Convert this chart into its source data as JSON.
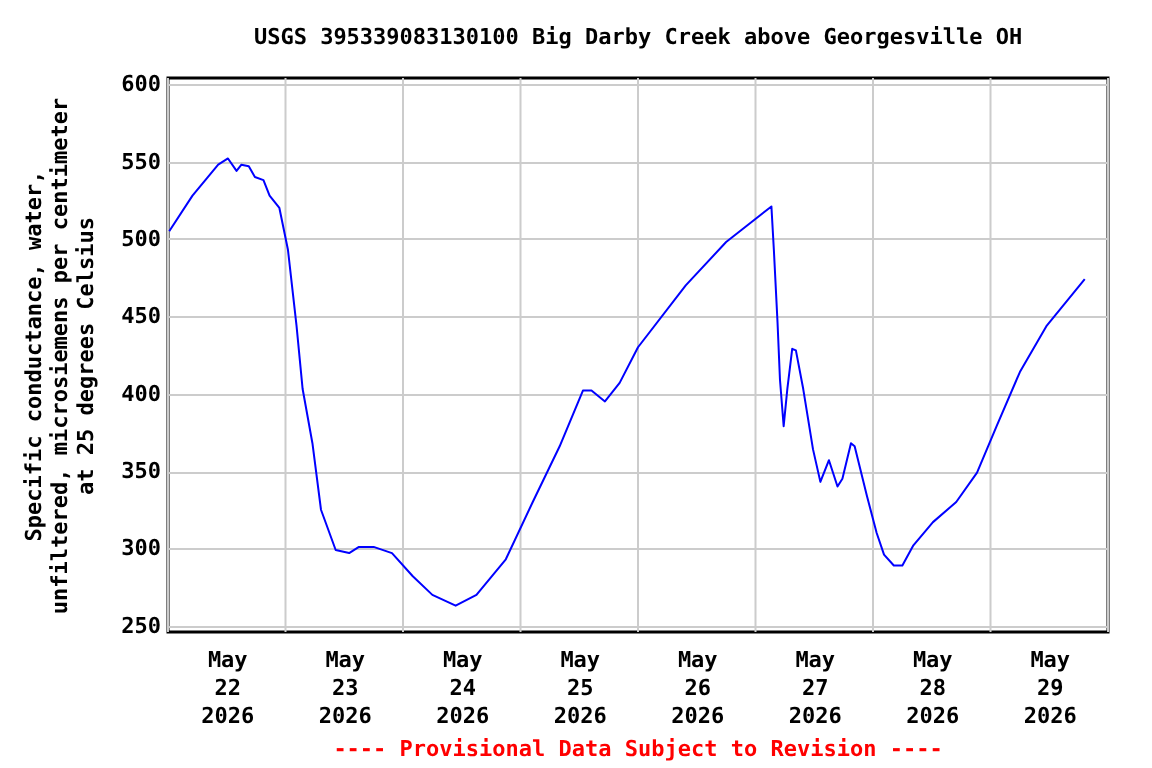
{
  "chart_data": {
    "type": "line",
    "title": "USGS 395339083130100 Big Darby Creek above Georgesville OH",
    "ylabel": "Specific conductance, water,\nunfiltered, microsiemens per centimeter\nat 25 degrees Celsius",
    "annotations": [
      "---- Provisional Data Subject to Revision ----"
    ],
    "xlim": [
      "2026-05-22T00:00",
      "2026-05-30T00:00"
    ],
    "xticks": [
      {
        "value": "2026-05-22T00:00",
        "label": null
      },
      {
        "value": "2026-05-22T12:00",
        "label": "May 22 2026"
      },
      {
        "value": "2026-05-23T00:00",
        "label": null
      },
      {
        "value": "2026-05-23T12:00",
        "label": "May 23 2026"
      },
      {
        "value": "2026-05-24T00:00",
        "label": null
      },
      {
        "value": "2026-05-24T12:00",
        "label": "May 24 2026"
      },
      {
        "value": "2026-05-25T00:00",
        "label": null
      },
      {
        "value": "2026-05-25T12:00",
        "label": "May 25 2026"
      },
      {
        "value": "2026-05-26T00:00",
        "label": null
      },
      {
        "value": "2026-05-26T12:00",
        "label": "May 26 2026"
      },
      {
        "value": "2026-05-27T00:00",
        "label": null
      },
      {
        "value": "2026-05-27T12:00",
        "label": "May 27 2026"
      },
      {
        "value": "2026-05-28T00:00",
        "label": null
      },
      {
        "value": "2026-05-28T12:00",
        "label": "May 28 2026"
      },
      {
        "value": "2026-05-29T00:00",
        "label": null
      },
      {
        "value": "2026-05-29T12:00",
        "label": "May 29 2026"
      },
      {
        "value": "2026-05-30T00:00",
        "label": null
      }
    ],
    "ylim": [
      246,
      604
    ],
    "yticks": [
      250,
      300,
      350,
      400,
      450,
      500,
      550,
      600
    ],
    "grid": true,
    "x": [
      "2026-05-22T00:15",
      "2026-05-22T05:00",
      "2026-05-22T10:15",
      "2026-05-22T12:15",
      "2026-05-22T14:00",
      "2026-05-22T15:00",
      "2026-05-22T16:30",
      "2026-05-22T17:45",
      "2026-05-22T19:30",
      "2026-05-22T20:45",
      "2026-05-22T22:45",
      "2026-05-23T00:30",
      "2026-05-23T02:15",
      "2026-05-23T03:30",
      "2026-05-23T05:30",
      "2026-05-23T07:15",
      "2026-05-23T10:15",
      "2026-05-23T13:00",
      "2026-05-23T15:00",
      "2026-05-23T18:00",
      "2026-05-23T21:45",
      "2026-05-24T02:00",
      "2026-05-24T06:00",
      "2026-05-24T10:45",
      "2026-05-24T15:00",
      "2026-05-24T21:00",
      "2026-05-25T02:30",
      "2026-05-25T08:00",
      "2026-05-25T12:45",
      "2026-05-25T14:30",
      "2026-05-25T17:15",
      "2026-05-25T20:15",
      "2026-05-26T00:00",
      "2026-05-26T09:45",
      "2026-05-26T18:00",
      "2026-05-27T03:15",
      "2026-05-27T03:45",
      "2026-05-27T04:30",
      "2026-05-27T05:00",
      "2026-05-27T05:45",
      "2026-05-27T06:30",
      "2026-05-27T07:30",
      "2026-05-27T08:15",
      "2026-05-27T09:45",
      "2026-05-27T11:45",
      "2026-05-27T13:15",
      "2026-05-27T15:00",
      "2026-05-27T16:45",
      "2026-05-27T17:45",
      "2026-05-27T19:30",
      "2026-05-27T20:15",
      "2026-05-27T22:45",
      "2026-05-28T00:45",
      "2026-05-28T02:15",
      "2026-05-28T04:15",
      "2026-05-28T06:00",
      "2026-05-28T08:15",
      "2026-05-28T12:15",
      "2026-05-28T17:00",
      "2026-05-28T21:15",
      "2026-05-29T01:15",
      "2026-05-29T06:00",
      "2026-05-29T11:30",
      "2026-05-29T19:15"
    ],
    "series": [
      {
        "color": "#0000ff",
        "values": [
          505,
          528,
          548,
          552,
          544,
          548,
          547,
          540,
          538,
          528,
          520,
          493,
          444,
          403,
          368,
          325,
          299,
          297,
          301,
          301,
          297,
          282,
          270,
          263,
          270,
          293,
          330,
          366,
          402,
          402,
          395,
          407,
          430,
          470,
          498,
          521,
          493,
          446,
          409,
          379,
          403,
          429,
          428,
          403,
          364,
          343,
          357,
          340,
          345,
          368,
          366,
          334,
          310,
          296,
          289,
          289,
          302,
          317,
          330,
          349,
          379,
          414,
          444,
          474
        ]
      }
    ]
  }
}
